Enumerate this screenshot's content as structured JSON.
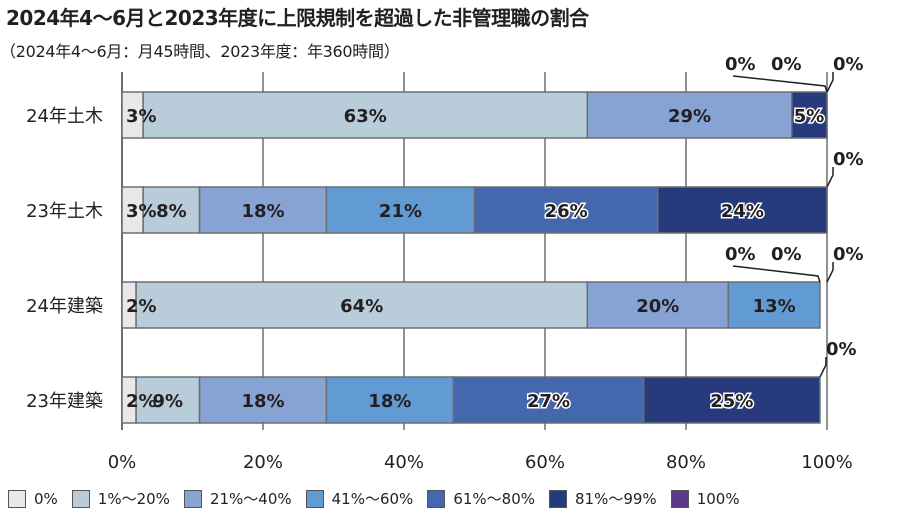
{
  "header": {
    "title": "2024年4～6月と2023年度に上限規制を超過した非管理職の割合",
    "subtitle": "（2024年4～6月：月45時間、2023年度：年360時間）"
  },
  "chart_data": {
    "type": "bar",
    "orientation": "horizontal",
    "stacked": true,
    "percent_axis": true,
    "xlim": [
      0,
      100
    ],
    "x_ticks": [
      "0%",
      "20%",
      "40%",
      "60%",
      "80%",
      "100%"
    ],
    "categories": [
      "24年土木",
      "23年土木",
      "24年建築",
      "23年建築"
    ],
    "series": [
      {
        "name": "0%",
        "color": "#e8e8e8",
        "values": [
          3,
          3,
          2,
          2
        ]
      },
      {
        "name": "1%～20%",
        "color": "#b9ccda",
        "values": [
          63,
          8,
          64,
          9
        ]
      },
      {
        "name": "21%～40%",
        "color": "#87a3d3",
        "values": [
          29,
          18,
          20,
          18
        ]
      },
      {
        "name": "41%～60%",
        "color": "#629ad3",
        "values": [
          0,
          21,
          13,
          18
        ]
      },
      {
        "name": "61%～80%",
        "color": "#4567ad",
        "values": [
          0,
          26,
          0,
          27
        ]
      },
      {
        "name": "81%～99%",
        "color": "#273a7c",
        "values": [
          5,
          24,
          0,
          25
        ]
      },
      {
        "name": "100%",
        "color": "#5b3a8a",
        "values": [
          0,
          0,
          0,
          0
        ]
      }
    ],
    "data_labels": [
      [
        "3%",
        "63%",
        "29%",
        "0%",
        "0%",
        "5%",
        "0%"
      ],
      [
        "3%",
        "8%",
        "18%",
        "21%",
        "26%",
        "24%",
        "0%"
      ],
      [
        "2%",
        "64%",
        "20%",
        "13%",
        "0%",
        "0%",
        "0%"
      ],
      [
        "2%",
        "9%",
        "18%",
        "18%",
        "27%",
        "25%",
        "0%"
      ]
    ],
    "grid": true,
    "legend_position": "bottom"
  }
}
